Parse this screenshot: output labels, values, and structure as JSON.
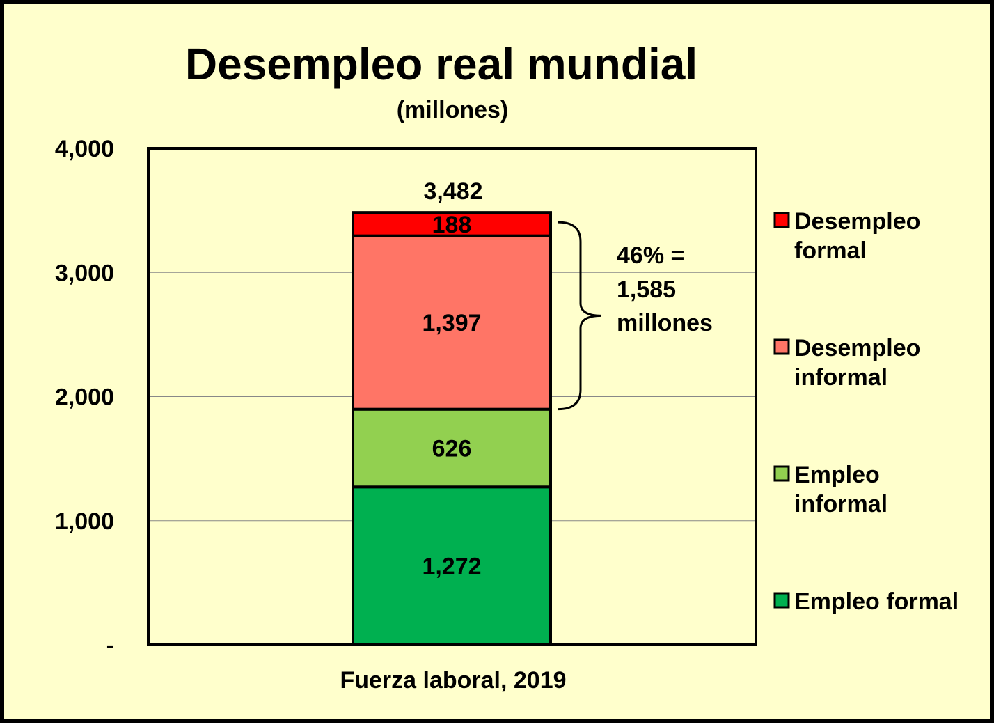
{
  "chart_data": {
    "type": "bar",
    "stacked": true,
    "title": "Desempleo real mundial",
    "subtitle": "(millones)",
    "categories": [
      "Fuerza laboral, 2019"
    ],
    "series": [
      {
        "name": "Empleo formal",
        "values": [
          1272
        ],
        "color": "#00b050"
      },
      {
        "name": "Empleo informal",
        "values": [
          626
        ],
        "color": "#92d050"
      },
      {
        "name": "Desempleo informal",
        "values": [
          1397
        ],
        "color": "#ff7566"
      },
      {
        "name": "Desempleo formal",
        "values": [
          188
        ],
        "color": "#ff0000"
      }
    ],
    "segment_labels": [
      "1,272",
      "626",
      "1,397",
      "188"
    ],
    "total_label": "3,482",
    "y_ticks": [
      "-",
      "1,000",
      "2,000",
      "3,000",
      "4,000"
    ],
    "ylim": [
      0,
      4000
    ],
    "grid": true,
    "legend_position": "right",
    "bracket_annotation": {
      "spans_series": [
        "Desempleo informal",
        "Desempleo formal"
      ],
      "lines": [
        "46% =",
        "1,585",
        "millones"
      ]
    },
    "background_color": "#ffffcc"
  }
}
